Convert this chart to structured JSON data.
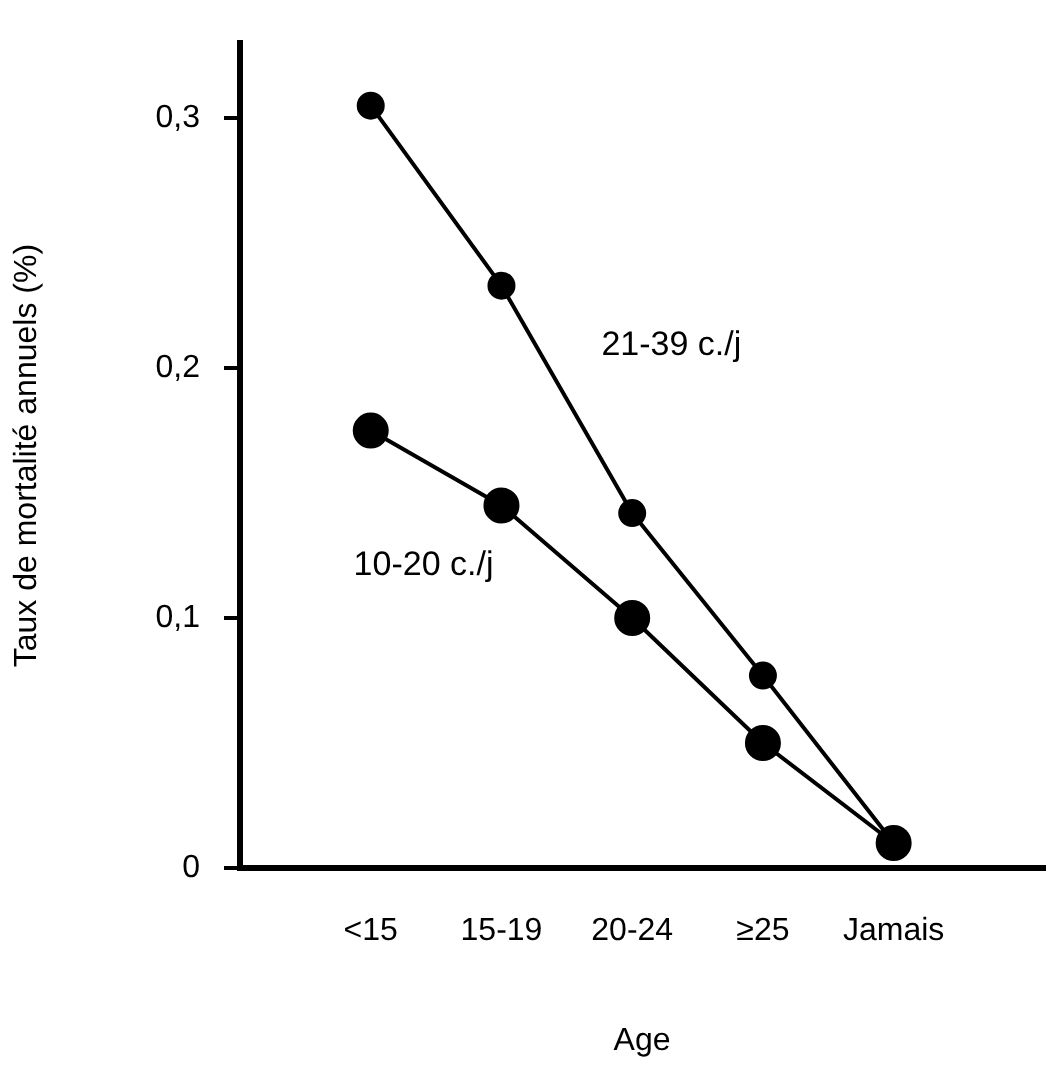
{
  "chart_data": {
    "type": "line",
    "xlabel": "Age",
    "ylabel": "Taux de mortalité annuels (%)",
    "categories": [
      "<15",
      "15-19",
      "20-24",
      "≥25",
      "Jamais"
    ],
    "series": [
      {
        "name": "21-39 c./j",
        "color": "#000000",
        "values": [
          0.305,
          0.233,
          0.142,
          0.077,
          0.01
        ]
      },
      {
        "name": "10-20 c./j",
        "color": "#000000",
        "values": [
          0.175,
          0.145,
          0.1,
          0.05,
          0.01
        ]
      }
    ],
    "ylim": [
      0,
      0.33
    ],
    "yticks": [
      0,
      {
        "value": 0.1,
        "label": "0,1"
      },
      {
        "value": 0.2,
        "label": "0,2"
      },
      {
        "value": 0.3,
        "label": "0,3"
      }
    ],
    "grid": false,
    "legend": false,
    "marker": "circle",
    "line_style": "solid"
  }
}
